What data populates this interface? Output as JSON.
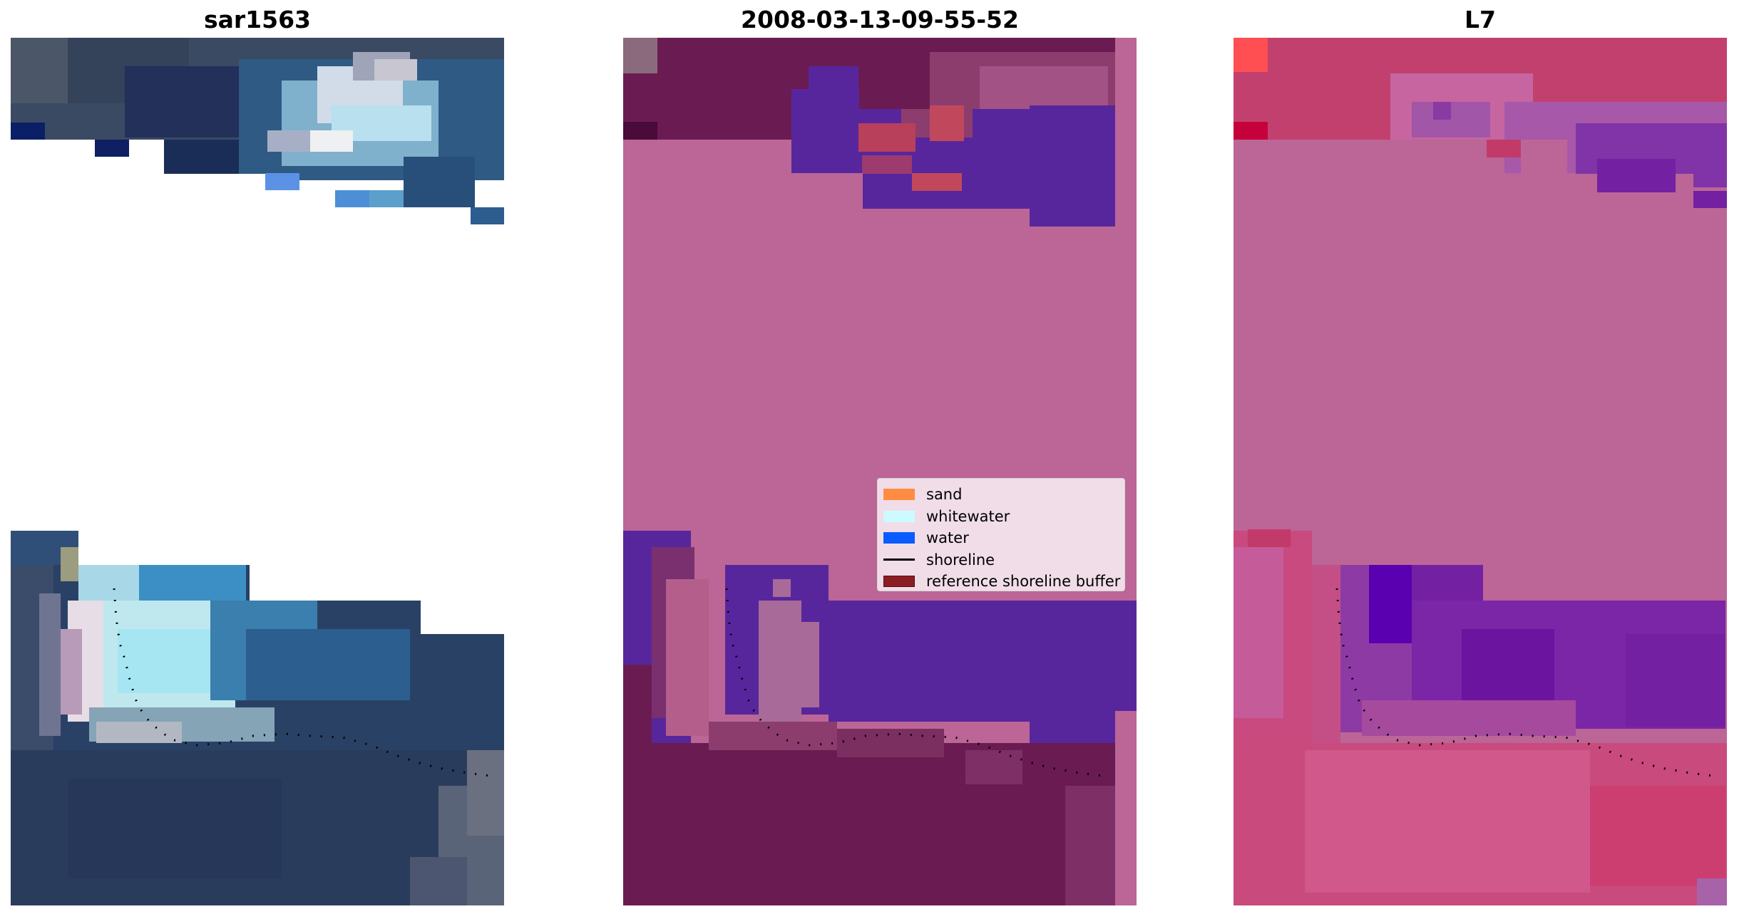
{
  "panels": [
    {
      "title": "sar1563"
    },
    {
      "title": "2008-03-13-09-55-52"
    },
    {
      "title": "L7"
    }
  ],
  "legend": {
    "items": [
      {
        "label": "sand",
        "color": "#ff8c42",
        "kind": "patch"
      },
      {
        "label": "whitewater",
        "color": "#ccfbff",
        "kind": "patch"
      },
      {
        "label": "water",
        "color": "#0a5cff",
        "kind": "patch"
      },
      {
        "label": "shoreline",
        "color": "#000000",
        "kind": "line"
      },
      {
        "label": "reference shoreline buffer",
        "color": "#8b1e24",
        "kind": "patch"
      }
    ]
  },
  "colors": {
    "rgb_water": "#2a4468",
    "rgb_whitewater": "#c8eef5",
    "classified_background": "#bb6696",
    "classified_water": "#58269c",
    "classified_land": "#6a1c52",
    "index_background": "#bb6696",
    "index_water": "#7420a2",
    "index_land": "#c84a7e"
  }
}
